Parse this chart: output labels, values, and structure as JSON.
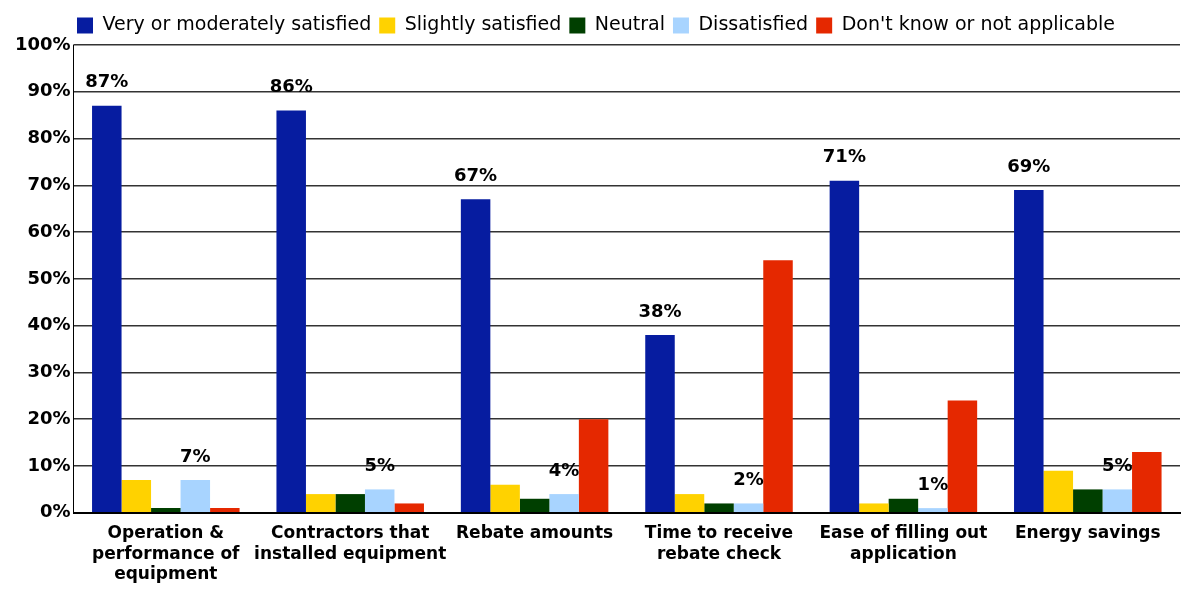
{
  "chart_data": {
    "type": "bar",
    "categories": [
      "Operation & performance of equipment",
      "Contractors that installed equipment",
      "Rebate amounts",
      "Time to receive rebate check",
      "Ease of filling out application",
      "Energy savings"
    ],
    "series": [
      {
        "name": "Very or moderately satisfied",
        "color": "#061ca0",
        "values": [
          87,
          86,
          67,
          38,
          71,
          69
        ],
        "value_labels": [
          "87%",
          "86%",
          "67%",
          "38%",
          "71%",
          "69%"
        ]
      },
      {
        "name": "Slightly satisfied",
        "color": "#ffd200",
        "values": [
          7,
          4,
          6,
          4,
          2,
          9
        ]
      },
      {
        "name": "Neutral",
        "color": "#003f00",
        "values": [
          1,
          4,
          3,
          2,
          3,
          5
        ]
      },
      {
        "name": "Dissatisfied",
        "color": "#a8d4ff",
        "values": [
          7,
          5,
          4,
          2,
          1,
          5
        ],
        "value_labels": [
          "7%",
          "5%",
          "4%",
          "2%",
          "1%",
          "5%"
        ]
      },
      {
        "name": "Don't know or not applicable",
        "color": "#e52800",
        "values": [
          1,
          2,
          20,
          54,
          24,
          13
        ]
      }
    ],
    "ylim": [
      0,
      100
    ],
    "yticks": [
      {
        "value": 0,
        "label": "0%"
      },
      {
        "value": 10,
        "label": "10%"
      },
      {
        "value": 20,
        "label": "20%"
      },
      {
        "value": 30,
        "label": "30%"
      },
      {
        "value": 40,
        "label": "40%"
      },
      {
        "value": 50,
        "label": "50%"
      },
      {
        "value": 60,
        "label": "60%"
      },
      {
        "value": 70,
        "label": "70%"
      },
      {
        "value": 80,
        "label": "80%"
      },
      {
        "value": 90,
        "label": "90%"
      },
      {
        "value": 100,
        "label": "100%"
      }
    ],
    "grid": "y",
    "legend": "top"
  }
}
